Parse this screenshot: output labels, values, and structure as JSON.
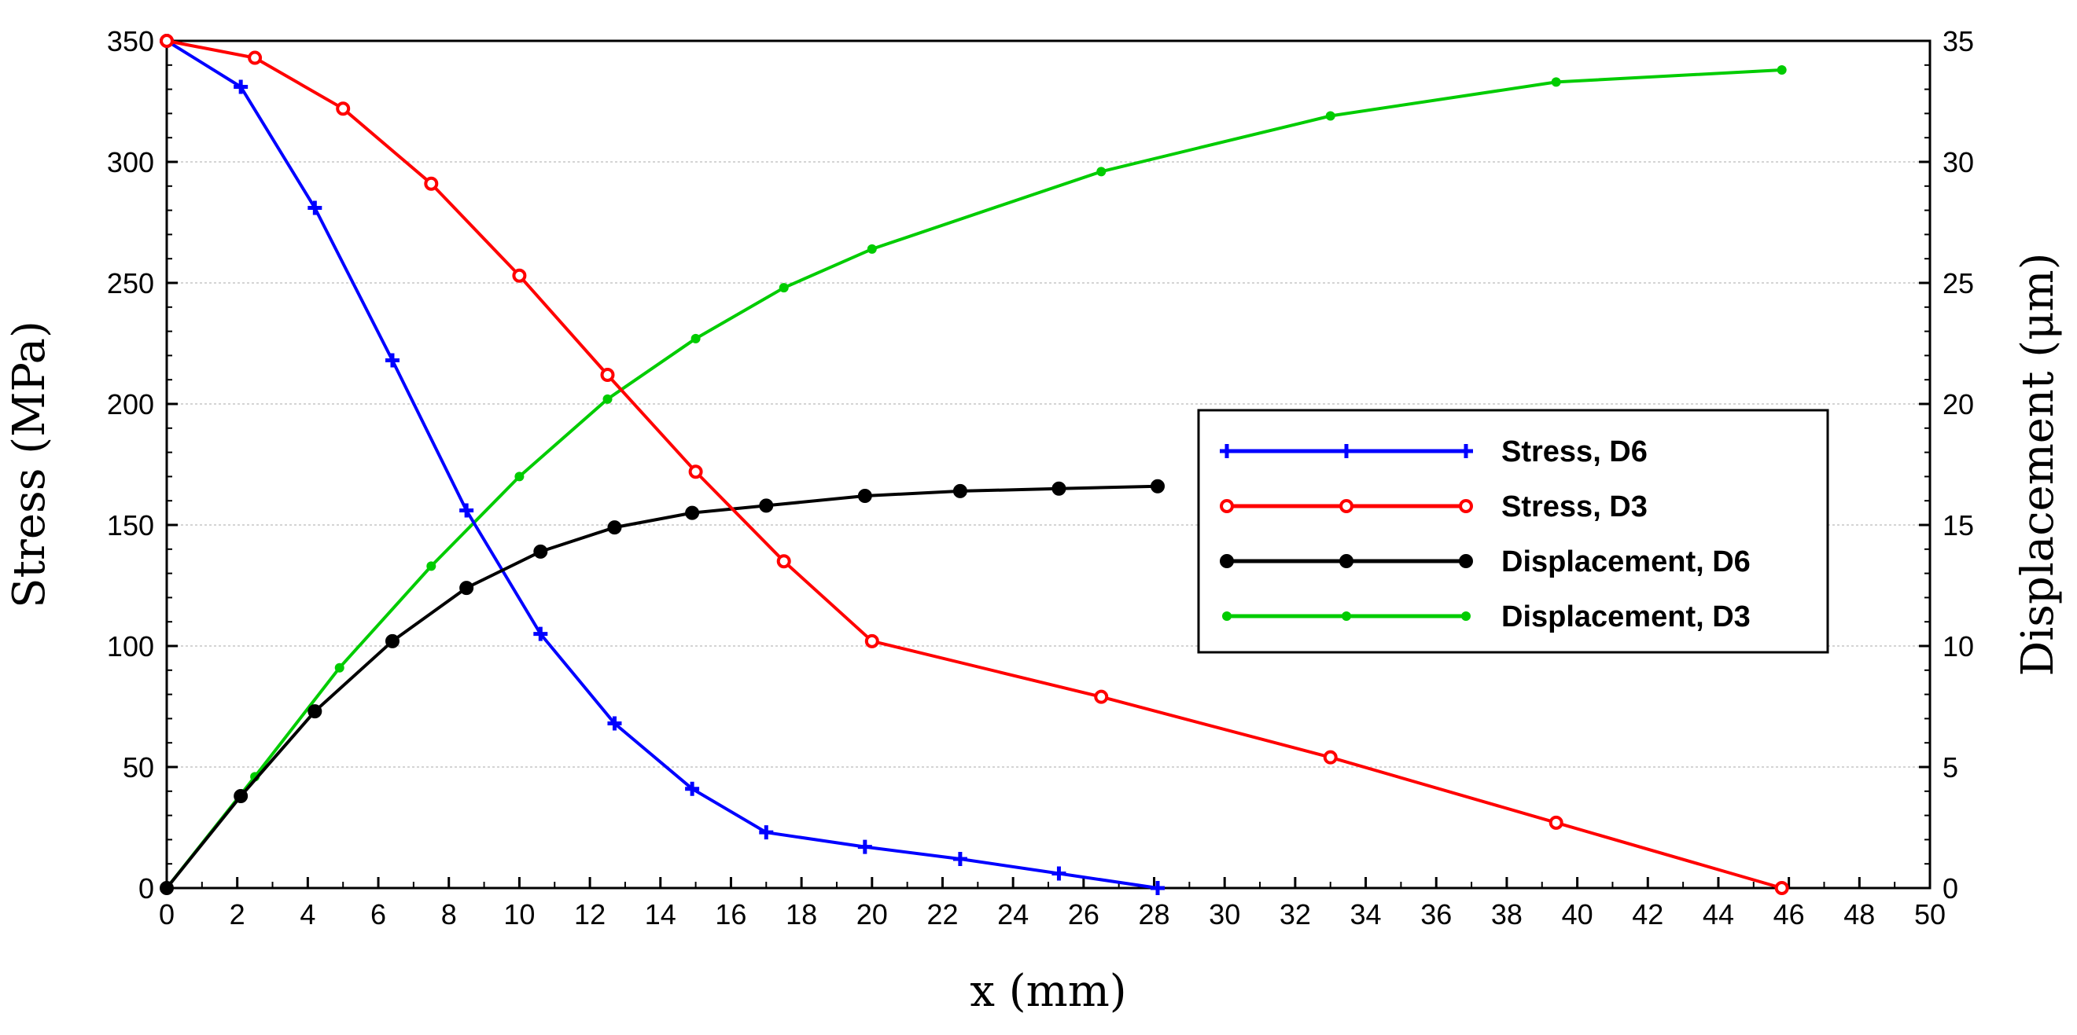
{
  "chart_data": {
    "type": "line",
    "xlabel": "x (mm)",
    "ylabel": "Stress (MPa)",
    "y2label": "Displacement (μm)",
    "xlim": [
      0,
      50
    ],
    "ylim": [
      0,
      350
    ],
    "y2lim": [
      0,
      35
    ],
    "x_ticks": [
      0,
      2,
      4,
      6,
      8,
      10,
      12,
      14,
      16,
      18,
      20,
      22,
      24,
      26,
      28,
      30,
      32,
      34,
      36,
      38,
      40,
      42,
      44,
      46,
      48,
      50
    ],
    "y_ticks": [
      0,
      50,
      100,
      150,
      200,
      250,
      300,
      350
    ],
    "y2_ticks": [
      0,
      5,
      10,
      15,
      20,
      25,
      30,
      35
    ],
    "grid": "horizontal",
    "legend_position": "center-right",
    "series": [
      {
        "name": "Stress, D6",
        "axis": "left",
        "color": "#0000ff",
        "marker": "plus",
        "x": [
          0,
          2.1,
          4.2,
          6.4,
          8.5,
          10.6,
          12.7,
          14.9,
          17.0,
          19.8,
          22.5,
          25.3,
          28.1
        ],
        "y": [
          350,
          331,
          281,
          218,
          156,
          105,
          68,
          41,
          23,
          17,
          12,
          6,
          0
        ]
      },
      {
        "name": "Stress, D3",
        "axis": "left",
        "color": "#ff0000",
        "marker": "open-circle",
        "x": [
          0,
          2.5,
          5.0,
          7.5,
          10.0,
          12.5,
          15.0,
          17.5,
          20.0,
          26.5,
          33.0,
          39.4,
          45.8
        ],
        "y": [
          350,
          343,
          322,
          291,
          253,
          212,
          172,
          135,
          102,
          79,
          54,
          27,
          0
        ]
      },
      {
        "name": "Displacement, D6",
        "axis": "right",
        "color": "#000000",
        "marker": "filled-circle",
        "x": [
          0,
          2.1,
          4.2,
          6.4,
          8.5,
          10.6,
          12.7,
          14.9,
          17.0,
          19.8,
          22.5,
          25.3,
          28.1
        ],
        "y": [
          0,
          3.8,
          7.3,
          10.2,
          12.4,
          13.9,
          14.9,
          15.5,
          15.8,
          16.2,
          16.4,
          16.5,
          16.6
        ]
      },
      {
        "name": "Displacement, D3",
        "axis": "right",
        "color": "#00cc00",
        "marker": "small-dot",
        "x": [
          0,
          2.5,
          4.9,
          7.5,
          10.0,
          12.5,
          15.0,
          17.5,
          20.0,
          26.5,
          33.0,
          39.4,
          45.8
        ],
        "y": [
          0,
          4.6,
          9.1,
          13.3,
          17.0,
          20.2,
          22.7,
          24.8,
          26.4,
          29.6,
          31.9,
          33.3,
          33.8
        ]
      }
    ]
  }
}
